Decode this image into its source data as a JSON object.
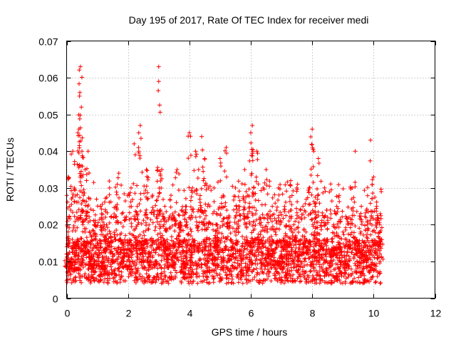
{
  "chart_data": {
    "type": "scatter",
    "title": "Day 195 of 2017, Rate Of TEC Index for receiver medi",
    "xlabel": "GPS time / hours",
    "ylabel": "ROTI / TECUs",
    "xlim": [
      0,
      12
    ],
    "ylim": [
      0,
      0.07
    ],
    "x_ticks": [
      0,
      2,
      4,
      6,
      8,
      10,
      12
    ],
    "x_tick_labels": [
      "0",
      "2",
      "4",
      "6",
      "8",
      "10",
      "12"
    ],
    "y_ticks": [
      0,
      0.01,
      0.02,
      0.03,
      0.04,
      0.05,
      0.06,
      0.07
    ],
    "y_tick_labels": [
      "0",
      "0.01",
      "0.02",
      "0.03",
      "0.04",
      "0.05",
      "0.06",
      "0.07"
    ],
    "grid": true,
    "marker": "plus",
    "marker_color": "#ff0000",
    "series": [
      {
        "name": "ROTI",
        "x": [
          0.0,
          0.05,
          0.1,
          0.15,
          0.2,
          0.25,
          0.3,
          0.35,
          0.4,
          0.42,
          0.45,
          0.48,
          0.5,
          0.55,
          0.6,
          0.65,
          0.7,
          0.75,
          0.8,
          0.85,
          0.9,
          1.0,
          1.1,
          1.2,
          1.3,
          1.4,
          1.5,
          1.6,
          1.7,
          1.8,
          1.9,
          2.0,
          2.1,
          2.2,
          2.3,
          2.35,
          2.4,
          2.5,
          2.6,
          2.7,
          2.8,
          2.9,
          3.0,
          3.0,
          3.1,
          3.2,
          3.3,
          3.4,
          3.5,
          3.6,
          3.7,
          3.8,
          3.9,
          4.0,
          4.1,
          4.2,
          4.3,
          4.4,
          4.5,
          4.6,
          4.7,
          4.8,
          4.9,
          5.0,
          5.1,
          5.2,
          5.3,
          5.4,
          5.5,
          5.6,
          5.7,
          5.8,
          5.9,
          6.0,
          6.05,
          6.1,
          6.2,
          6.3,
          6.4,
          6.5,
          6.6,
          6.7,
          6.8,
          6.9,
          7.0,
          7.1,
          7.2,
          7.3,
          7.4,
          7.5,
          7.6,
          7.7,
          7.8,
          7.9,
          8.0,
          8.05,
          8.1,
          8.2,
          8.3,
          8.4,
          8.5,
          8.6,
          8.7,
          8.8,
          8.9,
          9.0,
          9.1,
          9.2,
          9.3,
          9.4,
          9.5,
          9.6,
          9.7,
          9.8,
          9.9,
          10.0,
          10.1,
          10.2,
          10.25
        ],
        "y": [
          0.012,
          0.033,
          0.025,
          0.01,
          0.04,
          0.03,
          0.015,
          0.008,
          0.046,
          0.055,
          0.063,
          0.052,
          0.04,
          0.028,
          0.035,
          0.032,
          0.04,
          0.018,
          0.012,
          0.009,
          0.02,
          0.015,
          0.025,
          0.01,
          0.02,
          0.03,
          0.012,
          0.025,
          0.034,
          0.015,
          0.022,
          0.012,
          0.03,
          0.042,
          0.025,
          0.045,
          0.047,
          0.018,
          0.035,
          0.012,
          0.028,
          0.01,
          0.063,
          0.059,
          0.035,
          0.025,
          0.015,
          0.028,
          0.012,
          0.035,
          0.02,
          0.01,
          0.025,
          0.045,
          0.03,
          0.04,
          0.035,
          0.044,
          0.038,
          0.025,
          0.012,
          0.03,
          0.02,
          0.038,
          0.028,
          0.041,
          0.022,
          0.015,
          0.03,
          0.025,
          0.012,
          0.035,
          0.028,
          0.045,
          0.047,
          0.03,
          0.04,
          0.022,
          0.03,
          0.035,
          0.015,
          0.025,
          0.018,
          0.03,
          0.012,
          0.025,
          0.015,
          0.032,
          0.02,
          0.03,
          0.012,
          0.025,
          0.018,
          0.03,
          0.046,
          0.04,
          0.025,
          0.038,
          0.015,
          0.03,
          0.022,
          0.012,
          0.02,
          0.025,
          0.015,
          0.018,
          0.01,
          0.022,
          0.03,
          0.04,
          0.015,
          0.025,
          0.012,
          0.02,
          0.043,
          0.033,
          0.025,
          0.018,
          0.029
        ]
      }
    ],
    "note": "Dense scatter: values between ~0.003 and ~0.063 TECU for times 0 to ~10.25 h; the bulk lies between 0.005 and 0.02 with sparse spikes up to 0.063."
  }
}
